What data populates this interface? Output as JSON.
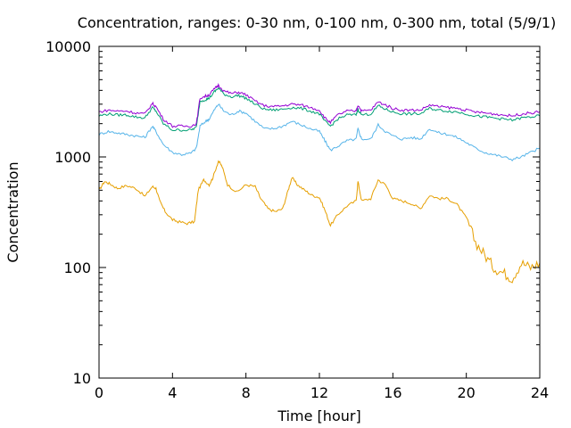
{
  "chart_data": {
    "type": "line",
    "title": "Concentration, ranges: 0-30 nm, 0-100 nm, 0-300 nm, total (5/9/1)",
    "xlabel": "Time [hour]",
    "ylabel": "Concentration",
    "xlim": [
      0,
      24
    ],
    "ylim": [
      10,
      10000
    ],
    "y_scale": "log",
    "grid": false,
    "xticks": [
      0,
      4,
      8,
      12,
      16,
      20,
      24
    ],
    "xtick_labels": [
      "0",
      "4",
      "8",
      "12",
      "16",
      "20",
      "24"
    ],
    "yticks": [
      10,
      100,
      1000,
      10000
    ],
    "ytick_labels": [
      "10",
      "100",
      "1000",
      "10000"
    ],
    "series": [
      {
        "color": "#e69f00",
        "points": [
          [
            0,
            500
          ],
          [
            0.3,
            600
          ],
          [
            0.6,
            570
          ],
          [
            1,
            520
          ],
          [
            1.5,
            550
          ],
          [
            2,
            520
          ],
          [
            2.5,
            440
          ],
          [
            2.9,
            540
          ],
          [
            3.1,
            520
          ],
          [
            3.3,
            400
          ],
          [
            3.6,
            320
          ],
          [
            4,
            270
          ],
          [
            4.3,
            260
          ],
          [
            4.8,
            250
          ],
          [
            5.2,
            260
          ],
          [
            5.4,
            500
          ],
          [
            5.7,
            620
          ],
          [
            6,
            560
          ],
          [
            6.2,
            650
          ],
          [
            6.5,
            920
          ],
          [
            6.7,
            820
          ],
          [
            7,
            560
          ],
          [
            7.5,
            480
          ],
          [
            8,
            560
          ],
          [
            8.5,
            540
          ],
          [
            8.8,
            420
          ],
          [
            9.2,
            340
          ],
          [
            9.6,
            320
          ],
          [
            10,
            340
          ],
          [
            10.3,
            500
          ],
          [
            10.5,
            650
          ],
          [
            10.8,
            560
          ],
          [
            11.2,
            500
          ],
          [
            11.6,
            450
          ],
          [
            12,
            430
          ],
          [
            12.3,
            330
          ],
          [
            12.6,
            240
          ],
          [
            13,
            300
          ],
          [
            13.5,
            360
          ],
          [
            14,
            400
          ],
          [
            14.1,
            600
          ],
          [
            14.3,
            400
          ],
          [
            14.8,
            420
          ],
          [
            15.2,
            620
          ],
          [
            15.6,
            560
          ],
          [
            16,
            420
          ],
          [
            16.5,
            400
          ],
          [
            17,
            380
          ],
          [
            17.5,
            340
          ],
          [
            18,
            450
          ],
          [
            18.5,
            420
          ],
          [
            19,
            420
          ],
          [
            19.5,
            370
          ],
          [
            20,
            280
          ],
          [
            20.5,
            170
          ],
          [
            21,
            130
          ],
          [
            21.5,
            100
          ],
          [
            22,
            90
          ],
          [
            22.5,
            80
          ],
          [
            23,
            110
          ],
          [
            23.5,
            100
          ],
          [
            24,
            110
          ]
        ]
      },
      {
        "color": "#56b4e9",
        "points": [
          [
            0,
            1600
          ],
          [
            0.5,
            1700
          ],
          [
            1,
            1650
          ],
          [
            1.5,
            1600
          ],
          [
            2,
            1550
          ],
          [
            2.5,
            1500
          ],
          [
            2.9,
            1900
          ],
          [
            3.1,
            1700
          ],
          [
            3.5,
            1300
          ],
          [
            4,
            1100
          ],
          [
            4.5,
            1050
          ],
          [
            5,
            1080
          ],
          [
            5.3,
            1200
          ],
          [
            5.5,
            1900
          ],
          [
            5.8,
            2100
          ],
          [
            6,
            2200
          ],
          [
            6.3,
            2700
          ],
          [
            6.5,
            3000
          ],
          [
            6.8,
            2600
          ],
          [
            7.2,
            2400
          ],
          [
            7.6,
            2600
          ],
          [
            8,
            2500
          ],
          [
            8.5,
            2100
          ],
          [
            9,
            1800
          ],
          [
            9.5,
            1800
          ],
          [
            10,
            1900
          ],
          [
            10.5,
            2100
          ],
          [
            11,
            1950
          ],
          [
            11.5,
            1800
          ],
          [
            12,
            1700
          ],
          [
            12.3,
            1400
          ],
          [
            12.6,
            1150
          ],
          [
            13,
            1250
          ],
          [
            13.5,
            1400
          ],
          [
            14,
            1450
          ],
          [
            14.1,
            1800
          ],
          [
            14.3,
            1450
          ],
          [
            14.8,
            1450
          ],
          [
            15.2,
            1950
          ],
          [
            15.6,
            1700
          ],
          [
            16,
            1550
          ],
          [
            16.5,
            1450
          ],
          [
            17,
            1500
          ],
          [
            17.5,
            1450
          ],
          [
            18,
            1800
          ],
          [
            18.5,
            1650
          ],
          [
            19,
            1600
          ],
          [
            19.5,
            1500
          ],
          [
            20,
            1350
          ],
          [
            20.5,
            1200
          ],
          [
            21,
            1100
          ],
          [
            21.5,
            1050
          ],
          [
            22,
            1000
          ],
          [
            22.5,
            950
          ],
          [
            23,
            1000
          ],
          [
            23.5,
            1100
          ],
          [
            24,
            1200
          ]
        ]
      },
      {
        "color": "#009e73",
        "points": [
          [
            0,
            2350
          ],
          [
            0.5,
            2450
          ],
          [
            1,
            2400
          ],
          [
            1.5,
            2400
          ],
          [
            2,
            2300
          ],
          [
            2.5,
            2250
          ],
          [
            2.9,
            2800
          ],
          [
            3.1,
            2600
          ],
          [
            3.5,
            2000
          ],
          [
            4,
            1750
          ],
          [
            4.5,
            1750
          ],
          [
            5,
            1750
          ],
          [
            5.3,
            1850
          ],
          [
            5.5,
            3200
          ],
          [
            5.8,
            3300
          ],
          [
            6,
            3400
          ],
          [
            6.3,
            3900
          ],
          [
            6.5,
            4200
          ],
          [
            6.8,
            3700
          ],
          [
            7.2,
            3500
          ],
          [
            7.6,
            3600
          ],
          [
            8,
            3400
          ],
          [
            8.5,
            3000
          ],
          [
            9,
            2700
          ],
          [
            9.5,
            2650
          ],
          [
            10,
            2700
          ],
          [
            10.5,
            2800
          ],
          [
            11,
            2750
          ],
          [
            11.5,
            2600
          ],
          [
            12,
            2450
          ],
          [
            12.3,
            2100
          ],
          [
            12.6,
            1900
          ],
          [
            13,
            2200
          ],
          [
            13.5,
            2400
          ],
          [
            14,
            2400
          ],
          [
            14.1,
            2700
          ],
          [
            14.3,
            2400
          ],
          [
            14.8,
            2450
          ],
          [
            15.2,
            2900
          ],
          [
            15.6,
            2700
          ],
          [
            16,
            2550
          ],
          [
            16.5,
            2450
          ],
          [
            17,
            2450
          ],
          [
            17.5,
            2450
          ],
          [
            18,
            2750
          ],
          [
            18.5,
            2650
          ],
          [
            19,
            2600
          ],
          [
            19.5,
            2550
          ],
          [
            20,
            2450
          ],
          [
            20.5,
            2350
          ],
          [
            21,
            2300
          ],
          [
            21.5,
            2250
          ],
          [
            22,
            2200
          ],
          [
            22.5,
            2150
          ],
          [
            23,
            2250
          ],
          [
            23.5,
            2300
          ],
          [
            24,
            2350
          ]
        ]
      },
      {
        "color": "#9400d3",
        "points": [
          [
            0,
            2550
          ],
          [
            0.5,
            2650
          ],
          [
            1,
            2600
          ],
          [
            1.5,
            2600
          ],
          [
            2,
            2500
          ],
          [
            2.5,
            2450
          ],
          [
            2.9,
            3050
          ],
          [
            3.1,
            2850
          ],
          [
            3.5,
            2200
          ],
          [
            4,
            1900
          ],
          [
            4.5,
            1900
          ],
          [
            5,
            1900
          ],
          [
            5.3,
            2000
          ],
          [
            5.5,
            3400
          ],
          [
            5.8,
            3550
          ],
          [
            6,
            3650
          ],
          [
            6.3,
            4150
          ],
          [
            6.5,
            4450
          ],
          [
            6.8,
            3950
          ],
          [
            7.2,
            3750
          ],
          [
            7.6,
            3850
          ],
          [
            8,
            3650
          ],
          [
            8.5,
            3200
          ],
          [
            9,
            2900
          ],
          [
            9.5,
            2850
          ],
          [
            10,
            2900
          ],
          [
            10.5,
            3000
          ],
          [
            11,
            2950
          ],
          [
            11.5,
            2800
          ],
          [
            12,
            2650
          ],
          [
            12.3,
            2250
          ],
          [
            12.6,
            2050
          ],
          [
            13,
            2400
          ],
          [
            13.5,
            2600
          ],
          [
            14,
            2600
          ],
          [
            14.1,
            2950
          ],
          [
            14.3,
            2600
          ],
          [
            14.8,
            2650
          ],
          [
            15.2,
            3150
          ],
          [
            15.6,
            2950
          ],
          [
            16,
            2750
          ],
          [
            16.5,
            2650
          ],
          [
            17,
            2650
          ],
          [
            17.5,
            2650
          ],
          [
            18,
            2950
          ],
          [
            18.5,
            2850
          ],
          [
            19,
            2800
          ],
          [
            19.5,
            2750
          ],
          [
            20,
            2650
          ],
          [
            20.5,
            2550
          ],
          [
            21,
            2500
          ],
          [
            21.5,
            2450
          ],
          [
            22,
            2400
          ],
          [
            22.5,
            2350
          ],
          [
            23,
            2450
          ],
          [
            23.5,
            2500
          ],
          [
            24,
            2550
          ]
        ]
      }
    ]
  }
}
